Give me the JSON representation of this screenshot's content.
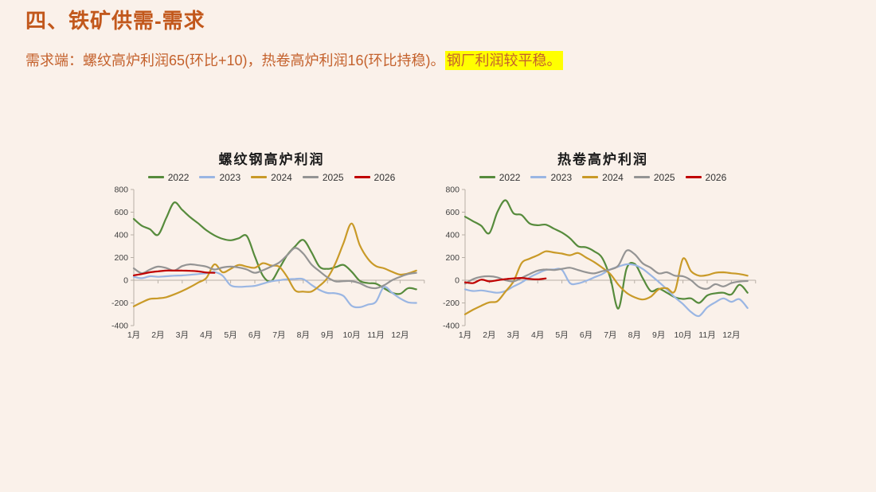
{
  "slide": {
    "title": "四、铁矿供需-需求",
    "body_prefix": "需求端：螺纹高炉利润65(环比+10)，热卷高炉利润16(环比持稳)。",
    "body_highlight": "钢厂利润较平稳。"
  },
  "colors": {
    "background": "#faf1ea",
    "title": "#c2581c",
    "body_text": "#c4612c",
    "highlight": "#ffff00",
    "axis": "#b8b0a6",
    "chart_text": "#3f3f3f",
    "series_2022": "#568b3c",
    "series_2023": "#9ab6e3",
    "series_2024": "#c99a28",
    "series_2025": "#949494",
    "series_2026": "#c00000"
  },
  "chart_data": [
    {
      "type": "line",
      "title": "螺纹钢高炉利润",
      "legend_position": "top",
      "grid": false,
      "ylim": [
        -400,
        800
      ],
      "y_ticks": [
        800,
        600,
        400,
        200,
        0,
        -200,
        -400
      ],
      "x_labels": [
        "1月",
        "2月",
        "3月",
        "4月",
        "5月",
        "6月",
        "7月",
        "8月",
        "9月",
        "10月",
        "11月",
        "12月"
      ],
      "points_per_month": 3,
      "series": [
        {
          "name": "2022",
          "color": "#568b3c",
          "values": [
            540,
            480,
            450,
            400,
            545,
            685,
            620,
            555,
            500,
            440,
            395,
            365,
            352,
            370,
            390,
            210,
            40,
            -10,
            100,
            220,
            300,
            355,
            250,
            120,
            100,
            115,
            135,
            75,
            -5,
            -25,
            -30,
            -70,
            -110,
            -120,
            -70,
            -80
          ]
        },
        {
          "name": "2023",
          "color": "#9ab6e3",
          "values": [
            30,
            18,
            35,
            30,
            35,
            40,
            42,
            48,
            55,
            62,
            72,
            40,
            -45,
            -58,
            -55,
            -50,
            -30,
            -10,
            0,
            8,
            12,
            10,
            -40,
            -85,
            -112,
            -115,
            -140,
            -225,
            -238,
            -215,
            -190,
            -60,
            -110,
            -160,
            -195,
            -200
          ]
        },
        {
          "name": "2024",
          "color": "#c99a28",
          "values": [
            -230,
            -195,
            -165,
            -160,
            -150,
            -125,
            -95,
            -60,
            -20,
            20,
            140,
            70,
            100,
            135,
            120,
            110,
            150,
            130,
            120,
            30,
            -90,
            -100,
            -100,
            -50,
            20,
            150,
            330,
            500,
            310,
            190,
            125,
            105,
            75,
            50,
            60,
            85
          ]
        },
        {
          "name": "2025",
          "color": "#949494",
          "values": [
            105,
            62,
            95,
            120,
            108,
            85,
            125,
            140,
            132,
            120,
            95,
            112,
            120,
            112,
            95,
            65,
            88,
            120,
            155,
            220,
            285,
            235,
            140,
            80,
            25,
            -10,
            -8,
            -8,
            -26,
            -60,
            -70,
            -45,
            0,
            30,
            55,
            65
          ]
        },
        {
          "name": "2026",
          "color": "#c00000",
          "values": [
            43,
            55,
            70,
            78,
            85,
            85,
            85,
            83,
            78,
            68,
            65
          ]
        }
      ]
    },
    {
      "type": "line",
      "title": "热卷高炉利润",
      "legend_position": "top",
      "grid": false,
      "ylim": [
        -400,
        800
      ],
      "y_ticks": [
        800,
        600,
        400,
        200,
        0,
        -200,
        -400
      ],
      "x_labels": [
        "1月",
        "2月",
        "3月",
        "4月",
        "5月",
        "6月",
        "7月",
        "8月",
        "9月",
        "10月",
        "11月",
        "12月"
      ],
      "points_per_month": 3,
      "series": [
        {
          "name": "2022",
          "color": "#568b3c",
          "values": [
            560,
            520,
            480,
            415,
            600,
            705,
            590,
            575,
            500,
            485,
            490,
            455,
            420,
            370,
            300,
            290,
            255,
            195,
            20,
            -250,
            100,
            145,
            20,
            -95,
            -75,
            -110,
            -150,
            -165,
            -160,
            -200,
            -135,
            -115,
            -110,
            -125,
            -40,
            -110
          ]
        },
        {
          "name": "2023",
          "color": "#9ab6e3",
          "values": [
            -80,
            -95,
            -90,
            -100,
            -110,
            -95,
            -55,
            -20,
            25,
            60,
            90,
            95,
            92,
            -25,
            -28,
            -5,
            25,
            55,
            95,
            120,
            140,
            135,
            100,
            45,
            -15,
            -80,
            -150,
            -210,
            -280,
            -315,
            -240,
            -195,
            -160,
            -190,
            -167,
            -245
          ]
        },
        {
          "name": "2024",
          "color": "#c99a28",
          "values": [
            -300,
            -260,
            -225,
            -195,
            -185,
            -100,
            -10,
            150,
            190,
            220,
            255,
            245,
            235,
            220,
            240,
            200,
            160,
            110,
            55,
            -40,
            -110,
            -150,
            -170,
            -145,
            -80,
            -70,
            -95,
            190,
            80,
            40,
            45,
            65,
            70,
            62,
            55,
            40
          ]
        },
        {
          "name": "2025",
          "color": "#949494",
          "values": [
            -30,
            10,
            30,
            35,
            25,
            0,
            -10,
            20,
            55,
            85,
            95,
            90,
            100,
            110,
            90,
            70,
            60,
            80,
            95,
            130,
            260,
            230,
            150,
            110,
            60,
            70,
            40,
            35,
            0,
            -60,
            -75,
            -35,
            -55,
            -25,
            -12,
            -7
          ]
        },
        {
          "name": "2026",
          "color": "#c00000",
          "values": [
            -18,
            -25,
            5,
            -10,
            0,
            10,
            16,
            20,
            12,
            8,
            16
          ]
        }
      ]
    }
  ]
}
